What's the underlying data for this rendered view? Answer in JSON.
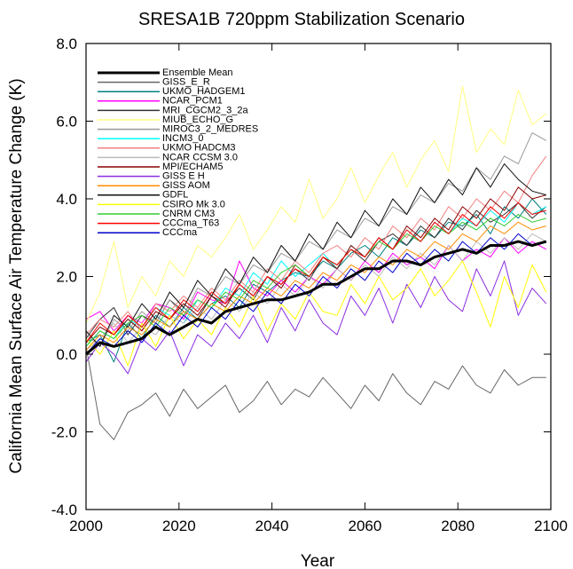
{
  "chart_data": {
    "type": "line",
    "title": "SRESA1B 720ppm Stabilization Scenario",
    "x_label": "Year",
    "y_label": "California Mean Surface Air Temperature Change (K)",
    "xlim": [
      2000,
      2100
    ],
    "xticks": [
      2000,
      2020,
      2040,
      2060,
      2080,
      2100
    ],
    "ylim": [
      -4,
      8
    ],
    "yticks": [
      {
        "value": -4,
        "label": "-4.0"
      },
      {
        "value": -2,
        "label": "-2.0"
      },
      {
        "value": 0,
        "label": "0.0"
      },
      {
        "value": 2,
        "label": "2.0"
      },
      {
        "value": 4,
        "label": "4.0"
      },
      {
        "value": 6,
        "label": "6.0"
      },
      {
        "value": 8,
        "label": "8.0"
      }
    ],
    "legend": "top-left",
    "x": [
      2000,
      2003,
      2006,
      2009,
      2012,
      2015,
      2018,
      2021,
      2024,
      2027,
      2030,
      2033,
      2036,
      2039,
      2042,
      2045,
      2048,
      2051,
      2054,
      2057,
      2060,
      2063,
      2066,
      2069,
      2072,
      2075,
      2078,
      2081,
      2084,
      2087,
      2090,
      2093,
      2096,
      2099
    ],
    "series": [
      {
        "name": "Ensemble Mean",
        "color": "#000000",
        "width": 3,
        "values": [
          0.0,
          0.3,
          0.2,
          0.3,
          0.4,
          0.7,
          0.5,
          0.7,
          0.9,
          0.8,
          1.1,
          1.2,
          1.3,
          1.4,
          1.4,
          1.5,
          1.6,
          1.8,
          1.8,
          2.0,
          2.2,
          2.2,
          2.4,
          2.4,
          2.3,
          2.5,
          2.6,
          2.7,
          2.6,
          2.8,
          2.8,
          2.9,
          2.8,
          2.9
        ]
      },
      {
        "name": "GISS_E_R",
        "color": "#666666",
        "values": [
          0.2,
          -1.8,
          -2.2,
          -1.5,
          -1.3,
          -1.0,
          -1.6,
          -0.9,
          -1.4,
          -1.1,
          -0.8,
          -1.5,
          -1.2,
          -0.7,
          -1.3,
          -0.9,
          -1.1,
          -0.6,
          -1.0,
          -1.4,
          -0.8,
          -1.2,
          -0.5,
          -1.0,
          -1.3,
          -0.7,
          -0.9,
          -0.3,
          -0.8,
          -1.0,
          -0.4,
          -0.8,
          -0.6,
          -0.6
        ]
      },
      {
        "name": "UKMO_HADGEM1",
        "color": "#008080",
        "values": [
          0.3,
          0.5,
          -0.2,
          0.8,
          0.4,
          1.0,
          0.7,
          1.2,
          0.9,
          1.3,
          1.5,
          1.2,
          1.8,
          1.6,
          1.9,
          2.1,
          2.0,
          2.4,
          2.2,
          2.6,
          2.8,
          2.5,
          3.0,
          2.8,
          3.2,
          3.0,
          3.4,
          3.3,
          3.6,
          3.1,
          3.8,
          3.5,
          4.0,
          3.6
        ]
      },
      {
        "name": "NCAR_PCM1",
        "color": "#ff00ff",
        "values": [
          0.9,
          1.1,
          0.6,
          1.0,
          0.8,
          1.3,
          1.2,
          0.9,
          1.6,
          1.4,
          1.3,
          2.4,
          1.7,
          1.5,
          1.9,
          1.6,
          2.0,
          1.8,
          2.2,
          1.9,
          2.4,
          2.1,
          2.6,
          2.3,
          2.5,
          2.2,
          2.8,
          2.4,
          2.7,
          2.5,
          3.0,
          2.6,
          2.9,
          2.7
        ]
      },
      {
        "name": "MRI_CGCM2_3_2a",
        "color": "#333333",
        "values": [
          0.4,
          0.9,
          1.2,
          0.5,
          1.0,
          0.8,
          1.4,
          1.1,
          0.9,
          1.5,
          1.3,
          1.7,
          1.4,
          2.0,
          1.8,
          2.2,
          1.9,
          2.5,
          2.3,
          2.7,
          2.4,
          2.9,
          3.1,
          2.8,
          3.3,
          3.0,
          3.5,
          3.2,
          3.7,
          3.4,
          3.6,
          3.9,
          3.5,
          3.8
        ]
      },
      {
        "name": "MIUB_ECHO_G",
        "color": "#ffff80",
        "values": [
          0.8,
          1.6,
          2.9,
          1.2,
          2.0,
          1.5,
          2.4,
          2.0,
          2.8,
          2.5,
          3.0,
          3.6,
          2.7,
          3.2,
          3.8,
          3.4,
          4.5,
          3.5,
          4.0,
          4.8,
          3.9,
          4.6,
          5.2,
          4.3,
          5.0,
          5.5,
          4.7,
          6.9,
          5.2,
          5.8,
          5.4,
          6.8,
          5.9,
          6.2
        ]
      },
      {
        "name": "MIROC3_2_MEDRES",
        "color": "#999999",
        "values": [
          0.5,
          0.2,
          0.9,
          0.6,
          1.1,
          0.8,
          1.4,
          1.0,
          1.7,
          1.5,
          2.0,
          1.8,
          2.3,
          2.1,
          2.6,
          2.4,
          2.9,
          2.7,
          3.2,
          3.0,
          3.5,
          3.3,
          3.8,
          3.6,
          4.1,
          3.9,
          4.4,
          4.2,
          4.8,
          4.5,
          5.1,
          4.9,
          5.7,
          5.5
        ]
      },
      {
        "name": "INCM3_0",
        "color": "#00ffff",
        "values": [
          0.2,
          0.6,
          0.4,
          0.9,
          0.7,
          1.2,
          1.0,
          0.8,
          1.4,
          1.2,
          1.7,
          1.5,
          2.1,
          1.8,
          2.4,
          2.0,
          2.3,
          2.6,
          2.2,
          2.8,
          2.5,
          3.0,
          2.7,
          3.2,
          2.9,
          3.4,
          3.1,
          3.5,
          3.3,
          3.7,
          3.4,
          3.9,
          3.6,
          3.8
        ]
      },
      {
        "name": "UKMO HADCM3",
        "color": "#f08080",
        "values": [
          0.5,
          0.9,
          0.7,
          1.1,
          0.6,
          1.3,
          1.1,
          1.5,
          1.2,
          1.7,
          1.4,
          1.9,
          1.6,
          2.2,
          1.9,
          2.4,
          2.1,
          2.6,
          2.8,
          2.5,
          3.0,
          2.7,
          3.3,
          3.0,
          3.5,
          3.2,
          3.8,
          3.5,
          4.0,
          3.7,
          4.2,
          3.9,
          4.6,
          5.1
        ]
      },
      {
        "name": "NCAR CCSM 3.0",
        "color": "#bbbbbb",
        "values": [
          0.1,
          0.4,
          0.8,
          0.3,
          0.7,
          0.5,
          1.0,
          0.8,
          1.2,
          0.9,
          1.4,
          1.1,
          1.6,
          1.3,
          1.8,
          1.5,
          2.0,
          1.7,
          2.2,
          1.9,
          2.3,
          2.0,
          2.5,
          2.2,
          2.6,
          2.3,
          2.8,
          2.4,
          2.9,
          2.6,
          3.0,
          2.7,
          3.1,
          2.9
        ]
      },
      {
        "name": "MPI/ECHAM5",
        "color": "#8b0000",
        "values": [
          0.3,
          0.7,
          0.5,
          0.9,
          0.6,
          1.1,
          0.9,
          1.3,
          1.0,
          1.5,
          1.2,
          1.8,
          1.5,
          2.0,
          1.7,
          2.3,
          2.0,
          2.5,
          2.2,
          2.8,
          2.5,
          3.0,
          2.7,
          3.3,
          3.0,
          3.5,
          3.2,
          3.8,
          3.5,
          4.0,
          3.7,
          4.3,
          4.0,
          4.1
        ]
      },
      {
        "name": "GISS E H",
        "color": "#8a2be2",
        "values": [
          -0.2,
          0.3,
          0.0,
          -0.5,
          0.4,
          0.1,
          0.6,
          -0.3,
          0.5,
          0.2,
          0.8,
          0.4,
          1.0,
          0.3,
          1.2,
          0.6,
          1.4,
          0.8,
          0.5,
          1.5,
          1.0,
          1.7,
          0.8,
          1.8,
          1.2,
          2.0,
          1.4,
          1.1,
          2.2,
          1.5,
          2.4,
          1.0,
          1.7,
          1.3
        ]
      },
      {
        "name": "GISS AOM",
        "color": "#ff8c00",
        "values": [
          0.1,
          0.5,
          0.3,
          0.7,
          0.5,
          0.9,
          0.7,
          1.1,
          0.9,
          1.3,
          1.1,
          1.5,
          1.3,
          1.7,
          1.5,
          1.9,
          1.7,
          2.1,
          1.9,
          2.3,
          2.1,
          2.5,
          2.3,
          2.7,
          2.5,
          2.9,
          2.7,
          3.1,
          2.9,
          3.3,
          3.1,
          3.4,
          3.2,
          3.3
        ]
      },
      {
        "name": "GDFL",
        "color": "#111111",
        "values": [
          0.6,
          0.2,
          1.0,
          0.7,
          1.3,
          0.9,
          1.6,
          1.2,
          1.9,
          1.5,
          2.2,
          1.8,
          2.5,
          2.1,
          2.8,
          2.4,
          3.1,
          2.7,
          3.4,
          3.0,
          3.7,
          3.3,
          4.0,
          3.6,
          4.3,
          3.9,
          4.5,
          4.1,
          4.8,
          4.3,
          4.9,
          4.5,
          4.2,
          4.1
        ]
      },
      {
        "name": "CSIRO Mk 3.0",
        "color": "#ffff00",
        "values": [
          0.4,
          0.0,
          0.6,
          -0.3,
          0.8,
          0.2,
          1.0,
          0.4,
          0.9,
          0.5,
          1.2,
          0.7,
          1.5,
          0.6,
          1.3,
          0.9,
          1.6,
          1.1,
          1.0,
          1.8,
          1.3,
          2.0,
          1.4,
          1.7,
          2.2,
          1.5,
          1.9,
          2.4,
          1.6,
          0.7,
          2.0,
          1.2,
          2.3,
          1.6
        ]
      },
      {
        "name": "CNRM CM3",
        "color": "#33cc33",
        "values": [
          0.2,
          0.6,
          0.4,
          0.8,
          1.0,
          0.7,
          1.2,
          1.0,
          1.4,
          1.2,
          1.6,
          1.4,
          1.9,
          1.7,
          2.1,
          2.3,
          2.0,
          2.5,
          2.3,
          2.7,
          2.5,
          2.9,
          2.7,
          3.1,
          2.9,
          3.3,
          3.1,
          3.4,
          3.2,
          3.5,
          3.3,
          3.6,
          3.4,
          3.5
        ]
      },
      {
        "name": "CCCma_T63",
        "color": "#ff0000",
        "values": [
          0.3,
          0.8,
          0.5,
          1.0,
          0.7,
          1.2,
          0.9,
          1.4,
          1.1,
          1.6,
          1.3,
          1.8,
          1.5,
          2.0,
          1.8,
          2.2,
          2.0,
          2.5,
          2.3,
          2.7,
          2.5,
          3.0,
          2.7,
          3.2,
          2.9,
          3.4,
          3.1,
          3.6,
          3.3,
          3.8,
          3.5,
          3.9,
          3.6,
          3.7
        ]
      },
      {
        "name": "CCCma",
        "color": "#0000cc",
        "values": [
          0.0,
          0.4,
          0.2,
          0.6,
          0.3,
          0.8,
          0.5,
          1.0,
          0.7,
          1.2,
          0.9,
          1.4,
          1.1,
          1.6,
          1.3,
          1.8,
          1.5,
          2.0,
          1.7,
          2.2,
          1.9,
          2.4,
          2.1,
          2.6,
          2.3,
          2.7,
          2.4,
          2.9,
          2.6,
          3.0,
          2.7,
          3.1,
          2.8,
          2.9
        ]
      }
    ]
  }
}
